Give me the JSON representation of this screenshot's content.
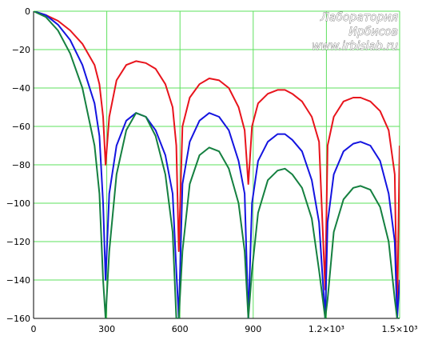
{
  "watermark": {
    "line1": "Лаборатория",
    "line2": "Ирбисов",
    "line3": "www.irbislab.ru"
  },
  "chart_data": {
    "type": "line",
    "title": "",
    "xlabel": "",
    "ylabel": "",
    "xlim": [
      0,
      1500
    ],
    "ylim": [
      -160,
      0
    ],
    "grid": true,
    "x_ticks": [
      {
        "value": 0,
        "label": "0"
      },
      {
        "value": 300,
        "label": "300"
      },
      {
        "value": 600,
        "label": "600"
      },
      {
        "value": 900,
        "label": "900"
      },
      {
        "value": 1200,
        "label": "1.2×10³"
      },
      {
        "value": 1500,
        "label": "1.5×10³"
      }
    ],
    "y_ticks": [
      {
        "value": 0,
        "label": "0"
      },
      {
        "value": -20,
        "label": "−20"
      },
      {
        "value": -40,
        "label": "−40"
      },
      {
        "value": -60,
        "label": "−60"
      },
      {
        "value": -80,
        "label": "−80"
      },
      {
        "value": -100,
        "label": "−100"
      },
      {
        "value": -120,
        "label": "−120"
      },
      {
        "value": -140,
        "label": "−140"
      },
      {
        "value": -160,
        "label": "−160"
      }
    ],
    "series": [
      {
        "color": "#e8141c",
        "x": [
          0,
          50,
          100,
          150,
          200,
          250,
          270,
          285,
          295,
          310,
          340,
          380,
          420,
          460,
          500,
          540,
          570,
          585,
          595,
          610,
          640,
          680,
          720,
          760,
          800,
          840,
          865,
          880,
          895,
          920,
          960,
          1000,
          1030,
          1060,
          1100,
          1140,
          1170,
          1195,
          1205,
          1230,
          1270,
          1310,
          1340,
          1380,
          1420,
          1455,
          1480,
          1490,
          1500
        ],
        "y": [
          0,
          -2,
          -5,
          -10,
          -17,
          -28,
          -38,
          -55,
          -80,
          -55,
          -36,
          -28,
          -26,
          -27,
          -30,
          -38,
          -50,
          -70,
          -125,
          -60,
          -45,
          -38,
          -35,
          -36,
          -40,
          -50,
          -62,
          -90,
          -60,
          -48,
          -43,
          -41,
          -41,
          -43,
          -47,
          -55,
          -68,
          -145,
          -70,
          -55,
          -47,
          -45,
          -45,
          -47,
          -52,
          -62,
          -85,
          -160,
          -70
        ]
      },
      {
        "color": "#1414e0",
        "x": [
          0,
          50,
          100,
          150,
          200,
          250,
          270,
          285,
          295,
          310,
          340,
          380,
          420,
          460,
          500,
          540,
          570,
          585,
          595,
          610,
          640,
          680,
          720,
          760,
          800,
          840,
          865,
          880,
          895,
          920,
          960,
          1000,
          1030,
          1060,
          1100,
          1140,
          1170,
          1195,
          1205,
          1230,
          1270,
          1310,
          1340,
          1380,
          1420,
          1455,
          1480,
          1490,
          1500
        ],
        "y": [
          0,
          -2,
          -7,
          -15,
          -28,
          -48,
          -65,
          -100,
          -140,
          -95,
          -70,
          -57,
          -53,
          -55,
          -62,
          -75,
          -95,
          -135,
          -160,
          -90,
          -68,
          -57,
          -53,
          -55,
          -62,
          -78,
          -95,
          -160,
          -100,
          -78,
          -68,
          -64,
          -64,
          -67,
          -73,
          -88,
          -110,
          -160,
          -110,
          -85,
          -73,
          -69,
          -68,
          -70,
          -78,
          -95,
          -120,
          -160,
          -140
        ]
      },
      {
        "color": "#158040",
        "x": [
          0,
          50,
          100,
          150,
          200,
          250,
          270,
          285,
          295,
          310,
          340,
          380,
          420,
          460,
          500,
          540,
          570,
          585,
          595,
          610,
          640,
          680,
          720,
          760,
          800,
          840,
          865,
          880,
          895,
          920,
          960,
          1000,
          1030,
          1060,
          1100,
          1140,
          1170,
          1195,
          1205,
          1230,
          1270,
          1310,
          1340,
          1380,
          1420,
          1455,
          1480,
          1490,
          1500
        ],
        "y": [
          0,
          -3,
          -10,
          -22,
          -40,
          -70,
          -95,
          -140,
          -160,
          -125,
          -85,
          -62,
          -53,
          -55,
          -65,
          -85,
          -115,
          -160,
          -160,
          -125,
          -90,
          -75,
          -71,
          -73,
          -82,
          -100,
          -125,
          -160,
          -135,
          -105,
          -88,
          -83,
          -82,
          -85,
          -92,
          -108,
          -135,
          -160,
          -150,
          -115,
          -98,
          -92,
          -91,
          -93,
          -102,
          -120,
          -150,
          -160,
          -160
        ]
      }
    ]
  }
}
